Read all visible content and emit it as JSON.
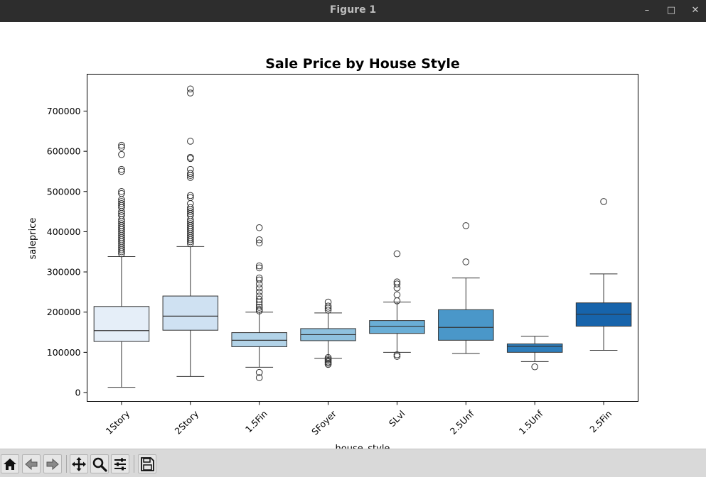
{
  "window": {
    "title": "Figure 1",
    "minimize_glyph": "–",
    "maximize_glyph": "□",
    "close_glyph": "✕"
  },
  "toolbar": {
    "buttons": [
      {
        "name": "home-button",
        "icon": "home-icon"
      },
      {
        "name": "back-button",
        "icon": "arrow-left-icon"
      },
      {
        "name": "forward-button",
        "icon": "arrow-right-icon"
      },
      {
        "name": "pan-button",
        "icon": "move-icon"
      },
      {
        "name": "zoom-button",
        "icon": "magnifier-icon"
      },
      {
        "name": "configure-subplots-button",
        "icon": "sliders-icon"
      },
      {
        "name": "save-button",
        "icon": "floppy-disk-icon"
      }
    ]
  },
  "chart_data": {
    "type": "box",
    "title": "Sale Price by House Style",
    "xlabel": "house_style",
    "ylabel": "saleprice",
    "ylim": [
      -22000,
      780000
    ],
    "yticks": [
      0,
      100000,
      200000,
      300000,
      400000,
      500000,
      600000,
      700000
    ],
    "ytick_labels": [
      "0",
      "100000",
      "200000",
      "300000",
      "400000",
      "500000",
      "600000",
      "700000"
    ],
    "grid": false,
    "legend": "none",
    "categories": [
      "1Story",
      "2Story",
      "1.5Fin",
      "SFoyer",
      "SLvl",
      "2.5Unf",
      "1.5Unf",
      "2.5Fin"
    ],
    "boxes": [
      {
        "category": "1Story",
        "whisker_low": 13000,
        "q1": 127000,
        "median": 154000,
        "q3": 214000,
        "whisker_high": 338000,
        "color": "#e5eef8",
        "outliers": [
          345000,
          350000,
          355000,
          360000,
          365000,
          370000,
          375000,
          380000,
          385000,
          390000,
          395000,
          400000,
          405000,
          410000,
          415000,
          420000,
          425000,
          430000,
          440000,
          445000,
          450000,
          460000,
          465000,
          470000,
          475000,
          480000,
          495000,
          500000,
          550000,
          555000,
          592000,
          610000,
          615000
        ]
      },
      {
        "category": "2Story",
        "whisker_low": 40000,
        "q1": 155000,
        "median": 190000,
        "q3": 240000,
        "whisker_high": 363000,
        "color": "#cfe1f2",
        "outliers": [
          370000,
          375000,
          380000,
          385000,
          390000,
          395000,
          400000,
          405000,
          410000,
          415000,
          420000,
          425000,
          430000,
          440000,
          445000,
          450000,
          455000,
          460000,
          470000,
          485000,
          490000,
          535000,
          540000,
          545000,
          555000,
          582000,
          585000,
          625000,
          745000,
          755000
        ]
      },
      {
        "category": "1.5Fin",
        "whisker_low": 63000,
        "q1": 114000,
        "median": 130000,
        "q3": 149000,
        "whisker_high": 200000,
        "color": "#b2d3e8",
        "outliers": [
          37000,
          50000,
          203000,
          207000,
          212000,
          218000,
          225000,
          232000,
          240000,
          250000,
          260000,
          270000,
          280000,
          285000,
          310000,
          315000,
          372000,
          380000,
          410000
        ]
      },
      {
        "category": "SFoyer",
        "whisker_low": 85000,
        "q1": 129000,
        "median": 144000,
        "q3": 159000,
        "whisker_high": 198000,
        "color": "#8fc1de",
        "outliers": [
          70000,
          73000,
          76000,
          80000,
          83000,
          87000,
          205000,
          210000,
          215000,
          225000
        ]
      },
      {
        "category": "SLvl",
        "whisker_low": 100000,
        "q1": 147000,
        "median": 165000,
        "q3": 179000,
        "whisker_high": 225000,
        "color": "#6aaed6",
        "outliers": [
          90000,
          94000,
          228000,
          243000,
          260000,
          270000,
          275000,
          345000
        ]
      },
      {
        "category": "2.5Unf",
        "whisker_low": 97000,
        "q1": 130000,
        "median": 162000,
        "q3": 206000,
        "whisker_high": 285000,
        "color": "#4a97c9",
        "outliers": [
          325000,
          415000
        ]
      },
      {
        "category": "1.5Unf",
        "whisker_low": 77000,
        "q1": 100000,
        "median": 115000,
        "q3": 121000,
        "whisker_high": 140000,
        "color": "#2e7ebc",
        "outliers": [
          64000
        ]
      },
      {
        "category": "2.5Fin",
        "whisker_low": 105000,
        "q1": 165000,
        "median": 195000,
        "q3": 223000,
        "whisker_high": 295000,
        "color": "#1764ab",
        "outliers": [
          475000
        ]
      }
    ]
  }
}
